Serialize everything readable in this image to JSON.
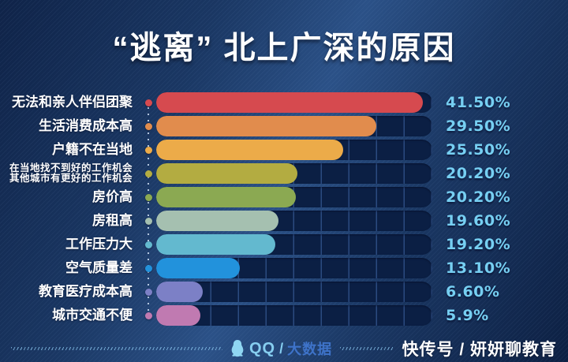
{
  "title": "“逃离” 北上广深的原因",
  "colors": {
    "background": "#16305a",
    "track": "#0b1f44",
    "percent_text": "#76cff2",
    "label_text": "#ffffff",
    "title_text": "#ffffff"
  },
  "chart_data": {
    "type": "bar",
    "orientation": "horizontal",
    "title": "“逃离” 北上广深的原因",
    "unit": "%",
    "xlim": [
      0,
      43
    ],
    "grid": "segmented-track",
    "legend": "none",
    "categories": [
      "无法和亲人伴侣团聚",
      "生活消费成本高",
      "户籍不在当地",
      "在当地找不到好的工作机会 其他城市有更好的工作机会",
      "房价高",
      "房租高",
      "工作压力大",
      "空气质量差",
      "教育医疗成本高",
      "城市交通不便"
    ],
    "values": [
      41.5,
      29.5,
      25.5,
      20.2,
      20.2,
      19.6,
      19.2,
      13.1,
      6.6,
      5.9
    ],
    "rows": [
      {
        "label_lines": [
          "无法和亲人伴侣团聚"
        ],
        "value": 41.5,
        "display": "41.50%",
        "color": "#d64a4f",
        "fill_pct": 96.6
      },
      {
        "label_lines": [
          "生活消费成本高"
        ],
        "value": 29.5,
        "display": "29.50%",
        "color": "#e18c4d",
        "fill_pct": 79.7
      },
      {
        "label_lines": [
          "户籍不在当地"
        ],
        "value": 25.5,
        "display": "25.50%",
        "color": "#ecab49",
        "fill_pct": 67.7
      },
      {
        "label_lines": [
          "在当地找不到好的工作机会",
          "其他城市有更好的工作机会"
        ],
        "value": 20.2,
        "display": "20.20%",
        "color": "#b3ac41",
        "fill_pct": 51.1
      },
      {
        "label_lines": [
          "房价高"
        ],
        "value": 20.2,
        "display": "20.20%",
        "color": "#8ba952",
        "fill_pct": 50.6
      },
      {
        "label_lines": [
          "房租高"
        ],
        "value": 19.6,
        "display": "19.60%",
        "color": "#a5c0b0",
        "fill_pct": 44.3
      },
      {
        "label_lines": [
          "工作压力大"
        ],
        "value": 19.2,
        "display": "19.20%",
        "color": "#63b9cf",
        "fill_pct": 43.1
      },
      {
        "label_lines": [
          "空气质量差"
        ],
        "value": 13.1,
        "display": "13.10%",
        "color": "#2292dc",
        "fill_pct": 30.3
      },
      {
        "label_lines": [
          "教育医疗成本高"
        ],
        "value": 6.6,
        "display": "6.60%",
        "color": "#7c80c6",
        "fill_pct": 16.9
      },
      {
        "label_lines": [
          "城市交通不便"
        ],
        "value": 5.9,
        "display": "5.9%",
        "color": "#c07ab1",
        "fill_pct": 16.0
      }
    ]
  },
  "footer": {
    "qq_label": "QQ",
    "separator": "/",
    "bigdata_label": "大数据",
    "source_label": "快传号 / 妍妍聊教育"
  }
}
